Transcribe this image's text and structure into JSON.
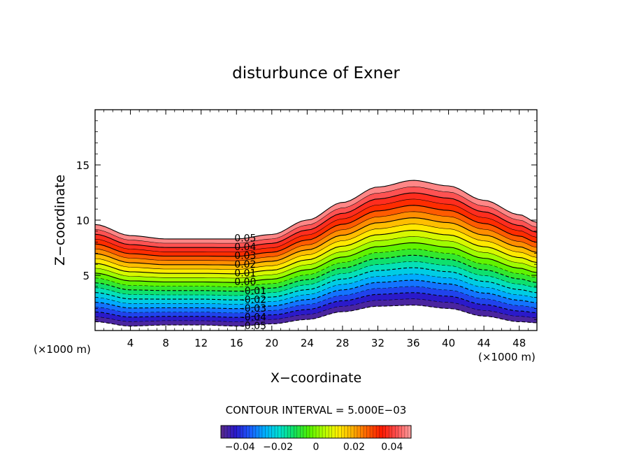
{
  "chart_data": {
    "type": "heatmap",
    "title": "disturbunce of Exner",
    "xlabel": "X−coordinate",
    "ylabel": "Z−coordinate",
    "x_unit_left": "(×1000 m)",
    "x_unit_right": "(×1000 m)",
    "xlim": [
      0,
      50
    ],
    "ylim": [
      0,
      20
    ],
    "x_ticks": [
      4,
      8,
      12,
      16,
      20,
      24,
      28,
      32,
      36,
      40,
      44,
      48
    ],
    "x_tick_labels": [
      "4",
      "8",
      "12",
      "16",
      "20",
      "24",
      "28",
      "32",
      "36",
      "40",
      "44",
      "48"
    ],
    "y_ticks": [
      5,
      10,
      15
    ],
    "y_tick_labels": [
      "5",
      "10",
      "15"
    ],
    "contour_interval_label": "CONTOUR INTERVAL = 5.000E−03",
    "contour_interval": 0.005,
    "value_range": [
      -0.05,
      0.05
    ],
    "contour_labels": [
      "0.05",
      "0.04",
      "0.03",
      "0.02",
      "0.01",
      "0.00",
      "-0.01",
      "-0.02",
      "-0.03",
      "-0.04",
      "-0.05"
    ],
    "field_top_z": [
      [
        0,
        9.6
      ],
      [
        4,
        8.6
      ],
      [
        8,
        8.3
      ],
      [
        12,
        8.3
      ],
      [
        16,
        8.3
      ],
      [
        20,
        8.7
      ],
      [
        24,
        10.0
      ],
      [
        28,
        11.6
      ],
      [
        32,
        13.0
      ],
      [
        36,
        13.6
      ],
      [
        40,
        13.1
      ],
      [
        44,
        11.8
      ],
      [
        48,
        10.5
      ],
      [
        50,
        9.8
      ]
    ],
    "field_bottom_z": [
      [
        0,
        0.8
      ],
      [
        4,
        0.4
      ],
      [
        8,
        0.5
      ],
      [
        12,
        0.5
      ],
      [
        16,
        0.4
      ],
      [
        20,
        0.6
      ],
      [
        24,
        1.0
      ],
      [
        28,
        1.7
      ],
      [
        32,
        2.2
      ],
      [
        36,
        2.3
      ],
      [
        40,
        2.0
      ],
      [
        44,
        1.3
      ],
      [
        48,
        0.8
      ],
      [
        50,
        0.7
      ]
    ],
    "colorbar": {
      "tick_labels": [
        "−0.04",
        "−0.02",
        "0",
        "0.02",
        "0.04"
      ],
      "tick_values": [
        -0.04,
        -0.02,
        0,
        0.02,
        0.04
      ],
      "range": [
        -0.05,
        0.05
      ]
    },
    "colors": {
      "scale": [
        "#5a2a8a",
        "#2a1acc",
        "#1a5cff",
        "#00b0ff",
        "#00e0d0",
        "#10e060",
        "#50f000",
        "#b0ff00",
        "#fff000",
        "#ffb000",
        "#ff6000",
        "#ff1800",
        "#ff5050",
        "#ffa0a0"
      ],
      "axis": "#000000"
    }
  }
}
